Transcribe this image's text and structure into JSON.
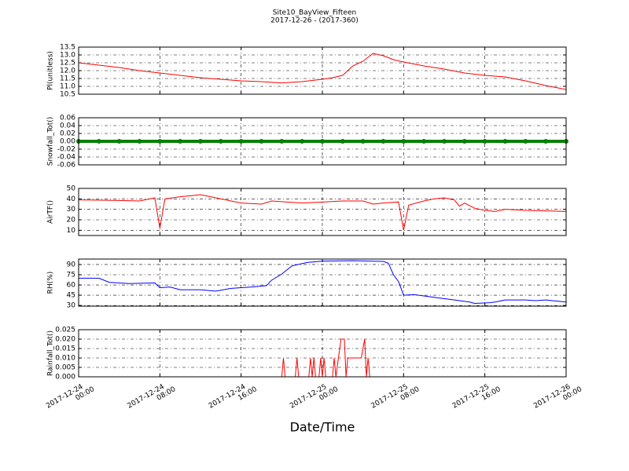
{
  "chart_data": [
    {
      "type": "line",
      "title": "Site10_BayView_Fifteen",
      "subtitle": "2017-12-26 - (2017-360)",
      "ylabel": "Pl(unitless)",
      "color": "#ff0000",
      "xlim": [
        "2017-12-24 00:00",
        "2017-12-26 00:00"
      ],
      "xticks": [
        "2017-12-24 00:00",
        "2017-12-24 08:00",
        "2017-12-24 16:00",
        "2017-12-25 00:00",
        "2017-12-25 08:00",
        "2017-12-25 16:00",
        "2017-12-26 00:00"
      ],
      "ylim": [
        10.5,
        13.5
      ],
      "yticks": [
        10.5,
        {
          "value": 11,
          "label": "11.0"
        },
        11.5,
        {
          "value": 12,
          "label": "12.0"
        },
        12.5,
        {
          "value": 13,
          "label": "13.0"
        },
        13.5
      ],
      "grid": true,
      "x": [
        "2017-12-24 00:00",
        "2017-12-24 02:00",
        "2017-12-24 04:00",
        "2017-12-24 06:00",
        "2017-12-24 08:00",
        "2017-12-24 10:00",
        "2017-12-24 12:00",
        "2017-12-24 14:00",
        "2017-12-24 16:00",
        "2017-12-24 18:00",
        "2017-12-24 20:00",
        "2017-12-24 22:00",
        "2017-12-25 00:00",
        "2017-12-25 01:00",
        "2017-12-25 02:00",
        "2017-12-25 03:00",
        "2017-12-25 04:00",
        "2017-12-25 05:00",
        "2017-12-25 06:00",
        "2017-12-25 07:00",
        "2017-12-25 08:00",
        "2017-12-25 10:00",
        "2017-12-25 12:00",
        "2017-12-25 14:00",
        "2017-12-25 16:00",
        "2017-12-25 18:00",
        "2017-12-25 20:00",
        "2017-12-25 22:00",
        "2017-12-26 00:00"
      ],
      "values": [
        12.5,
        12.35,
        12.2,
        12.0,
        11.85,
        11.7,
        11.55,
        11.45,
        11.35,
        11.3,
        11.22,
        11.3,
        11.45,
        11.55,
        11.7,
        12.3,
        12.6,
        13.1,
        12.95,
        12.7,
        12.55,
        12.3,
        12.1,
        11.85,
        11.7,
        11.6,
        11.35,
        11.05,
        10.8
      ]
    },
    {
      "type": "line",
      "ylabel": "Snowfall_Tot()",
      "color": "#008000",
      "marker": "o",
      "xlim": [
        "2017-12-24 00:00",
        "2017-12-26 00:00"
      ],
      "xticks": [
        "2017-12-24 00:00",
        "2017-12-24 08:00",
        "2017-12-24 16:00",
        "2017-12-25 00:00",
        "2017-12-25 08:00",
        "2017-12-25 16:00",
        "2017-12-26 00:00"
      ],
      "ylim": [
        -0.06,
        0.06
      ],
      "yticks": [
        -0.06,
        -0.04,
        -0.02,
        {
          "value": 0,
          "label": "0.00"
        },
        0.02,
        0.04,
        0.06
      ],
      "grid": true,
      "x": [
        "2017-12-24 00:00",
        "2017-12-24 02:00",
        "2017-12-24 04:00",
        "2017-12-24 06:00",
        "2017-12-24 08:00",
        "2017-12-24 10:00",
        "2017-12-24 12:00",
        "2017-12-24 14:00",
        "2017-12-24 16:00",
        "2017-12-24 18:00",
        "2017-12-24 20:00",
        "2017-12-24 22:00",
        "2017-12-25 00:00",
        "2017-12-25 02:00",
        "2017-12-25 04:00",
        "2017-12-25 06:00",
        "2017-12-25 08:00",
        "2017-12-25 10:00",
        "2017-12-25 12:00",
        "2017-12-25 14:00",
        "2017-12-25 16:00",
        "2017-12-25 18:00",
        "2017-12-25 20:00",
        "2017-12-25 22:00",
        "2017-12-26 00:00"
      ],
      "values": [
        0,
        0,
        0,
        0,
        0,
        0,
        0,
        0,
        0,
        0,
        0,
        0,
        0,
        0,
        0,
        0,
        0,
        0,
        0,
        0,
        0,
        0,
        0,
        0,
        0
      ]
    },
    {
      "type": "line",
      "ylabel": "AirTF()",
      "color": "#ff0000",
      "xlim": [
        "2017-12-24 00:00",
        "2017-12-26 00:00"
      ],
      "xticks": [
        "2017-12-24 00:00",
        "2017-12-24 08:00",
        "2017-12-24 16:00",
        "2017-12-25 00:00",
        "2017-12-25 08:00",
        "2017-12-25 16:00",
        "2017-12-26 00:00"
      ],
      "ylim": [
        5,
        50
      ],
      "yticks": [
        10,
        20,
        30,
        40,
        50
      ],
      "grid": true,
      "x": [
        "2017-12-24 00:00",
        "2017-12-24 04:00",
        "2017-12-24 06:00",
        "2017-12-24 07:30",
        "2017-12-24 08:00",
        "2017-12-24 08:30",
        "2017-12-24 10:00",
        "2017-12-24 11:00",
        "2017-12-24 12:00",
        "2017-12-24 13:00",
        "2017-12-24 14:00",
        "2017-12-24 16:00",
        "2017-12-24 18:00",
        "2017-12-24 19:00",
        "2017-12-24 22:00",
        "2017-12-25 00:00",
        "2017-12-25 02:00",
        "2017-12-25 04:00",
        "2017-12-25 05:00",
        "2017-12-25 06:00",
        "2017-12-25 07:30",
        "2017-12-25 08:00",
        "2017-12-25 08:30",
        "2017-12-25 10:00",
        "2017-12-25 11:00",
        "2017-12-25 12:00",
        "2017-12-25 13:00",
        "2017-12-25 13:30",
        "2017-12-25 14:00",
        "2017-12-25 15:00",
        "2017-12-25 16:00",
        "2017-12-25 17:00",
        "2017-12-25 18:00",
        "2017-12-25 20:00",
        "2017-12-25 22:00",
        "2017-12-26 00:00"
      ],
      "values": [
        39,
        38.5,
        38,
        41,
        12,
        40,
        42,
        43,
        44,
        42,
        40,
        36,
        35,
        38,
        36,
        37,
        38,
        38,
        35,
        36,
        37,
        10,
        34,
        38,
        40,
        41,
        39,
        33,
        36,
        31,
        29,
        28,
        30,
        29,
        28.5,
        28
      ]
    },
    {
      "type": "line",
      "ylabel": "RH(%)",
      "color": "#0000ff",
      "xlim": [
        "2017-12-24 00:00",
        "2017-12-26 00:00"
      ],
      "xticks": [
        "2017-12-24 00:00",
        "2017-12-24 08:00",
        "2017-12-24 16:00",
        "2017-12-25 00:00",
        "2017-12-25 08:00",
        "2017-12-25 16:00",
        "2017-12-26 00:00"
      ],
      "ylim": [
        29,
        98
      ],
      "yticks": [
        30,
        45,
        60,
        75,
        90
      ],
      "grid": true,
      "x": [
        "2017-12-24 00:00",
        "2017-12-24 02:00",
        "2017-12-24 03:00",
        "2017-12-24 05:00",
        "2017-12-24 07:30",
        "2017-12-24 08:00",
        "2017-12-24 09:00",
        "2017-12-24 10:00",
        "2017-12-24 12:00",
        "2017-12-24 13:30",
        "2017-12-24 15:00",
        "2017-12-24 17:00",
        "2017-12-24 18:30",
        "2017-12-24 19:00",
        "2017-12-24 20:00",
        "2017-12-24 21:00",
        "2017-12-24 22:30",
        "2017-12-25 00:00",
        "2017-12-25 03:00",
        "2017-12-25 06:00",
        "2017-12-25 06:30",
        "2017-12-25 07:00",
        "2017-12-25 07:30",
        "2017-12-25 08:00",
        "2017-12-25 09:00",
        "2017-12-25 11:00",
        "2017-12-25 13:00",
        "2017-12-25 14:30",
        "2017-12-25 15:00",
        "2017-12-25 16:30",
        "2017-12-25 17:00",
        "2017-12-25 18:00",
        "2017-12-25 20:00",
        "2017-12-25 21:00",
        "2017-12-25 22:00",
        "2017-12-26 00:00"
      ],
      "values": [
        70,
        70,
        64,
        62,
        63,
        56,
        57,
        53,
        53,
        51,
        55,
        57,
        59,
        67,
        76,
        88,
        93,
        95,
        95.5,
        94.5,
        92,
        75,
        65,
        45,
        46,
        42,
        38,
        35,
        33,
        34,
        35,
        38,
        38,
        37,
        38,
        35
      ]
    },
    {
      "type": "line",
      "ylabel": "Rainfall_Tot()",
      "xlabel": "Date/Time",
      "color": "#ff0000",
      "xlim": [
        "2017-12-24 00:00",
        "2017-12-26 00:00"
      ],
      "xticks": [
        "2017-12-24 00:00",
        "2017-12-24 08:00",
        "2017-12-24 16:00",
        "2017-12-25 00:00",
        "2017-12-25 08:00",
        "2017-12-25 16:00",
        "2017-12-26 00:00"
      ],
      "ylim": [
        0,
        0.025
      ],
      "yticks": [
        {
          "value": 0,
          "label": "0.000"
        },
        0.005,
        {
          "value": 0.01,
          "label": "0.010"
        },
        0.015,
        {
          "value": 0.02,
          "label": "0.020"
        },
        0.025
      ],
      "grid": true,
      "x": [
        "2017-12-24 00:00",
        "2017-12-24 20:00",
        "2017-12-24 20:10",
        "2017-12-24 20:20",
        "2017-12-24 21:20",
        "2017-12-24 21:30",
        "2017-12-24 21:40",
        "2017-12-24 22:40",
        "2017-12-24 22:50",
        "2017-12-24 23:00",
        "2017-12-24 23:10",
        "2017-12-24 23:20",
        "2017-12-24 23:40",
        "2017-12-24 23:50",
        "2017-12-25 00:00",
        "2017-12-25 00:10",
        "2017-12-25 00:20",
        "2017-12-25 01:00",
        "2017-12-25 01:10",
        "2017-12-25 01:20",
        "2017-12-25 01:50",
        "2017-12-25 02:10",
        "2017-12-25 02:20",
        "2017-12-25 02:30",
        "2017-12-25 03:50",
        "2017-12-25 04:10",
        "2017-12-25 04:20",
        "2017-12-25 04:30",
        "2017-12-25 04:40",
        "2017-12-26 00:00"
      ],
      "values": [
        0,
        0,
        0.01,
        0,
        0,
        0.01,
        0,
        0,
        0.01,
        0,
        0.01,
        0,
        0,
        0.01,
        0,
        0.01,
        0,
        0,
        0.01,
        0,
        0.02,
        0.02,
        0,
        0.01,
        0.01,
        0.02,
        0,
        0.01,
        0,
        0
      ]
    }
  ]
}
